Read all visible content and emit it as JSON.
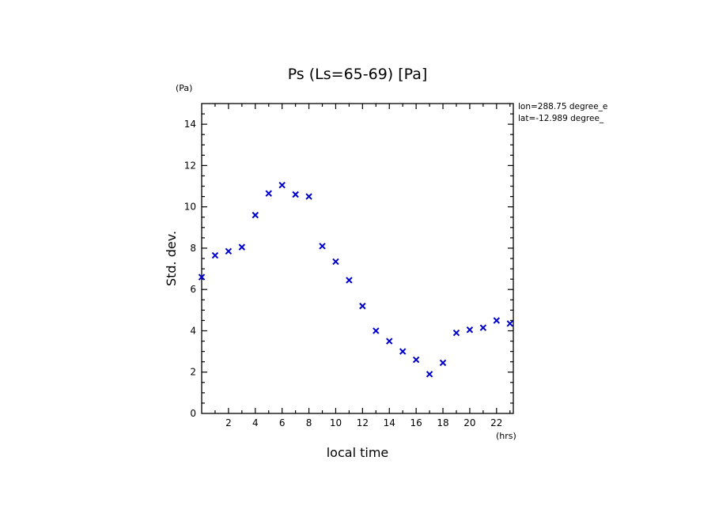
{
  "chart_data": {
    "type": "scatter",
    "title": "Ps (Ls=65-69) [Pa]",
    "xlabel": "local time",
    "ylabel": "Std. dev.",
    "x_unit": "(hrs)",
    "y_unit": "(Pa)",
    "xlim": [
      0,
      23.25
    ],
    "ylim": [
      0,
      15
    ],
    "xticks": [
      2,
      4,
      6,
      8,
      10,
      12,
      14,
      16,
      18,
      20,
      22
    ],
    "yticks": [
      0,
      2,
      4,
      6,
      8,
      10,
      12,
      14
    ],
    "info_lines": [
      "lon=288.75 degree_e",
      "lat=-12.989 degree_"
    ],
    "marker": "x",
    "color": "#0000cc",
    "grid": false,
    "x": [
      0.0,
      1.0,
      2.0,
      3.0,
      4.0,
      5.0,
      6.0,
      7.0,
      8.0,
      9.0,
      10.0,
      11.0,
      12.0,
      13.0,
      14.0,
      15.0,
      16.0,
      17.0,
      18.0,
      19.0,
      20.0,
      21.0,
      22.0,
      23.0
    ],
    "y": [
      6.6,
      7.65,
      7.85,
      8.05,
      9.6,
      10.65,
      11.05,
      10.6,
      10.5,
      8.1,
      7.35,
      6.45,
      5.2,
      4.0,
      3.5,
      3.0,
      2.6,
      1.9,
      2.45,
      3.9,
      4.05,
      4.15,
      4.5,
      4.35
    ]
  }
}
